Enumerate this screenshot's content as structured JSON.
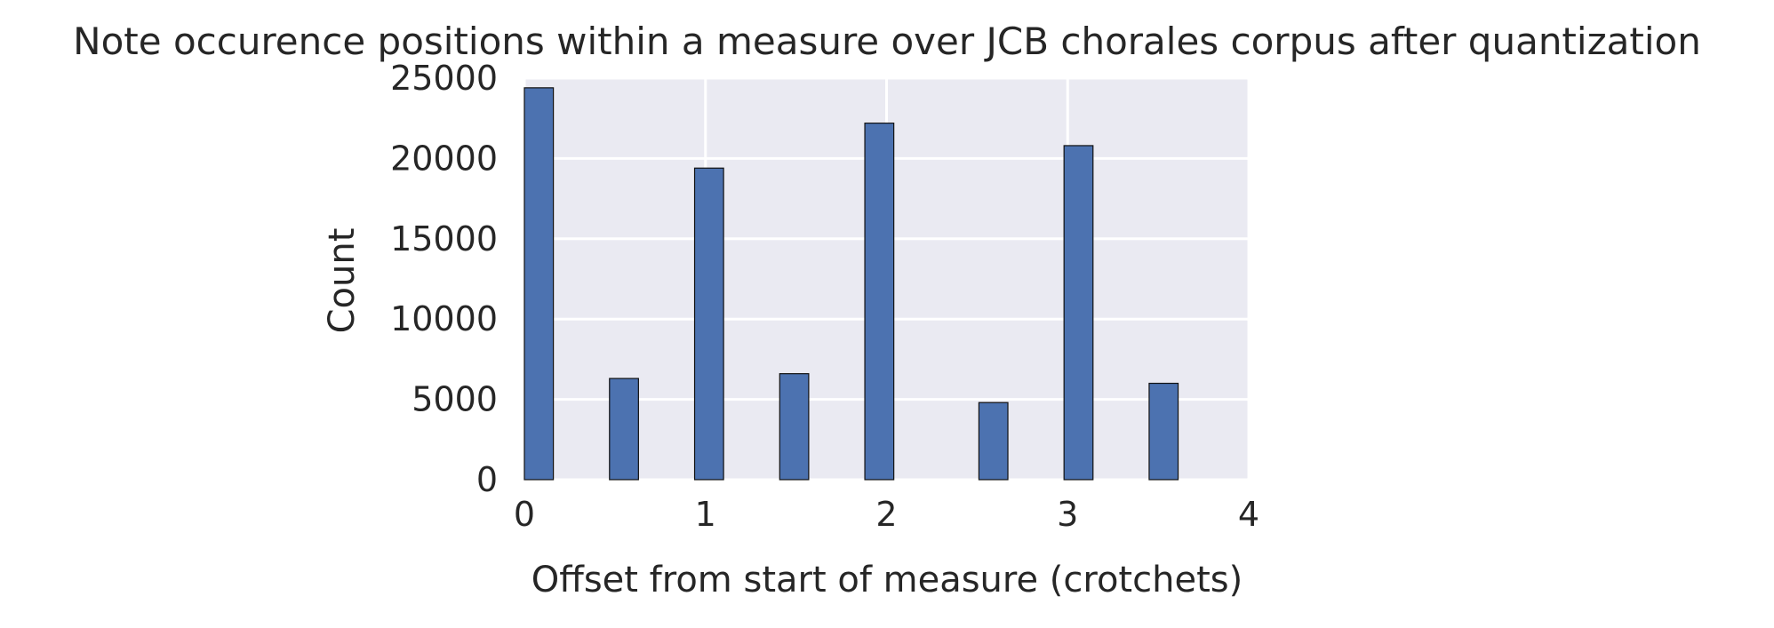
{
  "chart_data": {
    "type": "bar",
    "title": "Note occurence positions within a measure over JCB chorales corpus after quantization",
    "xlabel": "Offset from start of measure (crotchets)",
    "ylabel": "Count",
    "xlim": [
      0,
      4
    ],
    "ylim": [
      0,
      25000
    ],
    "xticks": [
      "0",
      "1",
      "2",
      "3",
      "4"
    ],
    "yticks": [
      "0",
      "5000",
      "10000",
      "15000",
      "20000",
      "25000"
    ],
    "bin_width": 0.16,
    "bars": [
      {
        "x": 0.0,
        "value": 24400
      },
      {
        "x": 0.47,
        "value": 6300
      },
      {
        "x": 0.94,
        "value": 19400
      },
      {
        "x": 1.41,
        "value": 6600
      },
      {
        "x": 1.88,
        "value": 22200
      },
      {
        "x": 2.51,
        "value": 4800
      },
      {
        "x": 2.98,
        "value": 20800
      },
      {
        "x": 3.45,
        "value": 6000
      }
    ],
    "grid": true,
    "colors": {
      "bar": "#4c72b0",
      "bar_edge": "#111111",
      "background": "#eaeaf2",
      "grid": "#ffffff",
      "text": "#262626"
    }
  }
}
